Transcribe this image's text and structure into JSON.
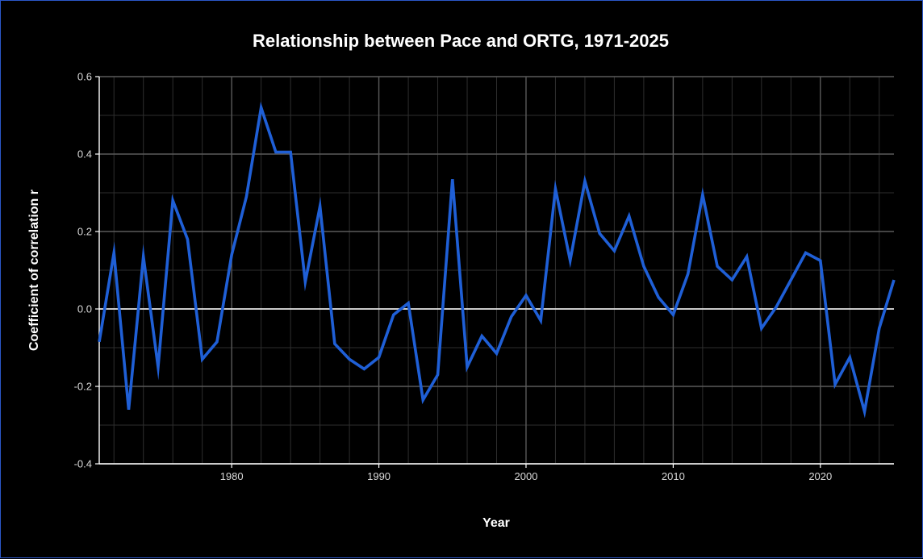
{
  "chart_data": {
    "type": "line",
    "title": "Relationship between Pace and ORTG, 1971-2025",
    "xlabel": "Year",
    "ylabel": "Coefficient of correlation r",
    "xlim": [
      1971,
      2025
    ],
    "ylim": [
      -0.4,
      0.6
    ],
    "x_ticks": [
      1980,
      1990,
      2000,
      2010,
      2020
    ],
    "y_ticks": [
      -0.4,
      -0.2,
      0.0,
      0.2,
      0.4,
      0.6
    ],
    "y_tick_labels": [
      "-0.4",
      "-0.2",
      "0.0",
      "0.2",
      "0.4",
      "0.6"
    ],
    "grid": true,
    "zero_line": true,
    "colors": {
      "background": "#000000",
      "line": "#1f5fd6",
      "grid_major": "#5a5a5a",
      "grid_minor": "#2e2e2e",
      "zero_line": "#e6e6e6",
      "text": "#ffffff"
    },
    "series": [
      {
        "x": [
          1971,
          1972,
          1973,
          1974,
          1975,
          1976,
          1977,
          1978,
          1979,
          1980,
          1981,
          1982,
          1983,
          1984,
          1985,
          1986,
          1987,
          1988,
          1989,
          1990,
          1991,
          1992,
          1993,
          1994,
          1995,
          1996,
          1997,
          1998,
          1999,
          2000,
          2001,
          2002,
          2003,
          2004,
          2005,
          2006,
          2007,
          2008,
          2009,
          2010,
          2011,
          2012,
          2013,
          2014,
          2015,
          2016,
          2017,
          2018,
          2019,
          2020,
          2021,
          2022,
          2023,
          2024,
          2025
        ],
        "values": [
          -0.085,
          0.145,
          -0.26,
          0.135,
          -0.15,
          0.28,
          0.18,
          -0.13,
          -0.085,
          0.14,
          0.29,
          0.52,
          0.405,
          0.405,
          0.07,
          0.265,
          -0.09,
          -0.13,
          -0.155,
          -0.125,
          -0.015,
          0.015,
          -0.235,
          -0.17,
          0.335,
          -0.15,
          -0.07,
          -0.115,
          -0.02,
          0.035,
          -0.03,
          0.31,
          0.125,
          0.33,
          0.195,
          0.15,
          0.24,
          0.11,
          0.03,
          -0.015,
          0.09,
          0.295,
          0.11,
          0.075,
          0.135,
          -0.05,
          0.005,
          0.075,
          0.145,
          0.125,
          -0.195,
          -0.125,
          -0.265,
          -0.05,
          0.075
        ]
      }
    ]
  }
}
